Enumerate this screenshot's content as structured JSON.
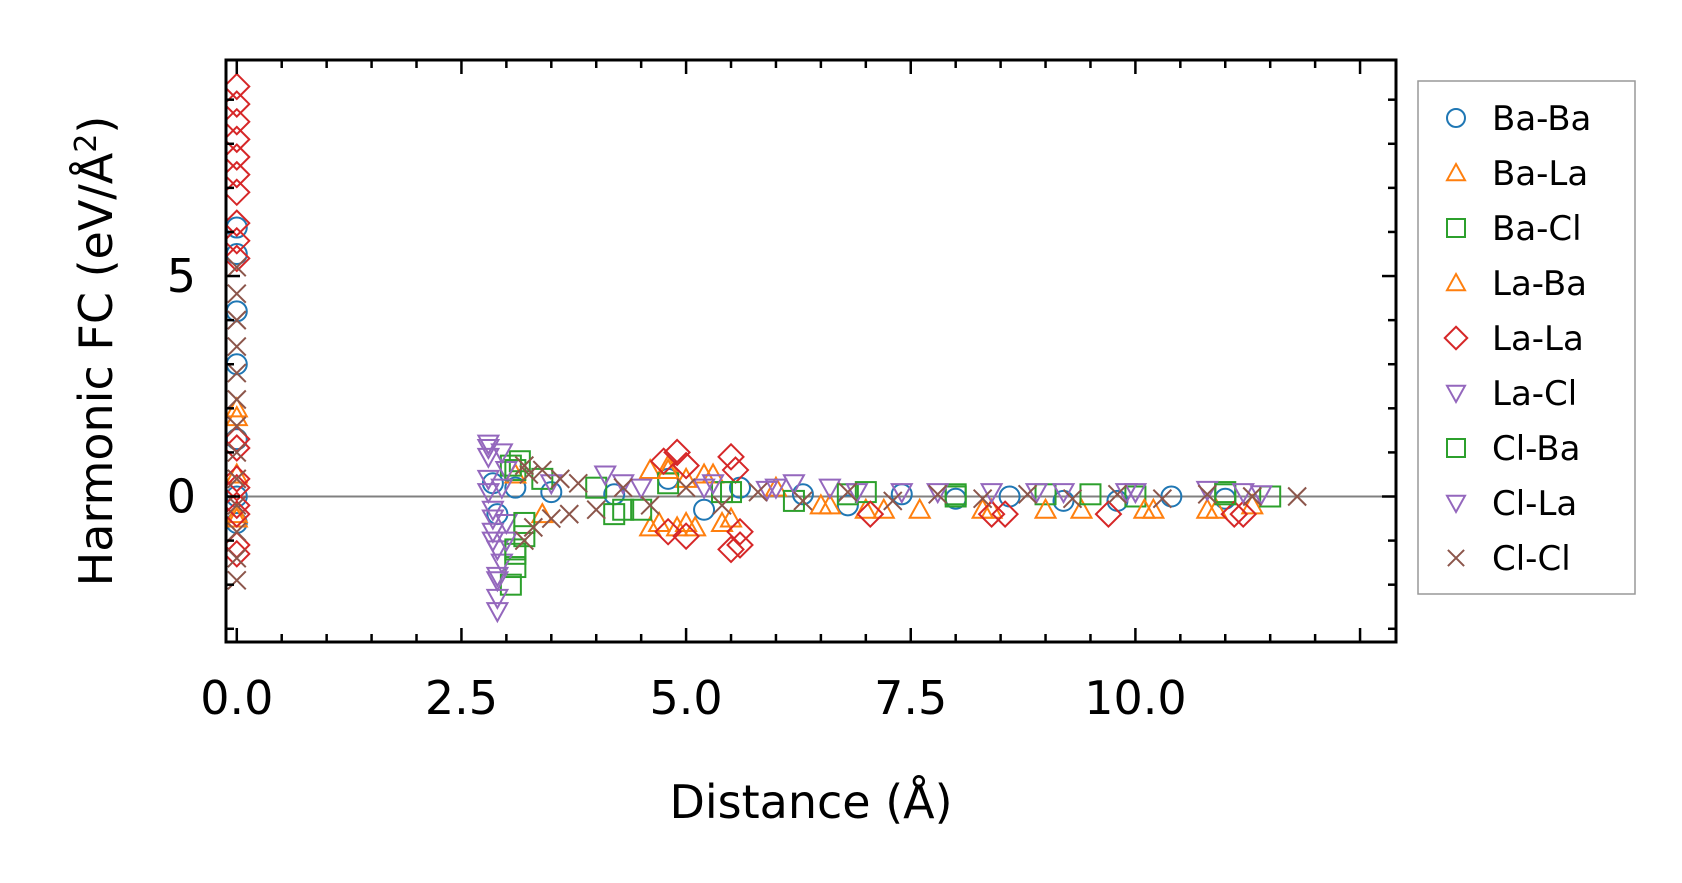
{
  "chart_data": {
    "type": "scatter",
    "title": "",
    "xlabel": "Distance (Å)",
    "ylabel_main": "Harmonic FC (eV/Å",
    "ylabel_sup": "2",
    "ylabel_end": ")",
    "xlim": [
      -0.12,
      12.9
    ],
    "ylim": [
      -3.3,
      9.9
    ],
    "xticks": [
      0.0,
      2.5,
      5.0,
      7.5,
      10.0
    ],
    "xtick_labels": [
      "0.0",
      "2.5",
      "5.0",
      "7.5",
      "10.0"
    ],
    "yticks": [
      0,
      5
    ],
    "ytick_labels": [
      "0",
      "5"
    ],
    "reference_line_y": 0,
    "legend_position": "right, outside plot",
    "series": [
      {
        "name": "Ba-Ba",
        "marker": "circle",
        "color": "#1f77b4",
        "points": [
          [
            0,
            6.1
          ],
          [
            0,
            5.5
          ],
          [
            0,
            4.2
          ],
          [
            0,
            3.0
          ],
          [
            0,
            1.3
          ],
          [
            0,
            0
          ],
          [
            0,
            -0.6
          ],
          [
            2.85,
            0.3
          ],
          [
            2.9,
            -0.4
          ],
          [
            3.1,
            0.2
          ],
          [
            3.5,
            0.1
          ],
          [
            4.2,
            0.05
          ],
          [
            4.8,
            0.4
          ],
          [
            5.2,
            -0.3
          ],
          [
            5.6,
            0.2
          ],
          [
            6.3,
            0.05
          ],
          [
            6.8,
            -0.2
          ],
          [
            7.4,
            0.05
          ],
          [
            8.0,
            -0.05
          ],
          [
            8.6,
            0.0
          ],
          [
            9.2,
            -0.1
          ],
          [
            9.8,
            -0.1
          ],
          [
            10.4,
            0.0
          ],
          [
            11.0,
            -0.05
          ]
        ]
      },
      {
        "name": "Ba-La",
        "marker": "triangle-up",
        "color": "#ff7f0e",
        "points": [
          [
            0,
            2.0
          ],
          [
            0,
            0.5
          ],
          [
            0,
            -0.5
          ],
          [
            3.1,
            0.5
          ],
          [
            3.4,
            -0.4
          ],
          [
            4.6,
            0.6
          ],
          [
            4.7,
            -0.6
          ],
          [
            4.8,
            0.7
          ],
          [
            4.9,
            -0.7
          ],
          [
            5.0,
            0.4
          ],
          [
            5.1,
            -0.7
          ],
          [
            5.3,
            0.5
          ],
          [
            5.5,
            -0.5
          ],
          [
            6.0,
            0.2
          ],
          [
            6.6,
            -0.2
          ],
          [
            7.0,
            -0.3
          ],
          [
            7.6,
            -0.3
          ],
          [
            8.4,
            -0.3
          ],
          [
            9.4,
            -0.3
          ],
          [
            10.2,
            -0.3
          ],
          [
            10.9,
            -0.3
          ],
          [
            11.3,
            -0.2
          ]
        ]
      },
      {
        "name": "Ba-Cl",
        "marker": "square",
        "color": "#2ca02c",
        "points": [
          [
            3.05,
            0.7
          ],
          [
            3.05,
            -2.0
          ],
          [
            3.1,
            -1.6
          ],
          [
            3.1,
            -1.3
          ],
          [
            3.15,
            0.8
          ],
          [
            3.2,
            -0.9
          ],
          [
            3.4,
            0.4
          ],
          [
            4.0,
            0.2
          ],
          [
            4.3,
            -0.3
          ],
          [
            4.8,
            0.3
          ],
          [
            5.4,
            0.1
          ],
          [
            6.2,
            -0.1
          ],
          [
            7.0,
            0.1
          ],
          [
            8.0,
            0.0
          ],
          [
            9.0,
            0.05
          ],
          [
            10.0,
            0.0
          ],
          [
            11.0,
            0.1
          ],
          [
            11.5,
            0.0
          ]
        ]
      },
      {
        "name": "La-Ba",
        "marker": "triangle-up",
        "color": "#ff7f0e",
        "points": [
          [
            0,
            1.8
          ],
          [
            0,
            -0.4
          ],
          [
            4.6,
            -0.7
          ],
          [
            4.8,
            0.6
          ],
          [
            5.0,
            -0.6
          ],
          [
            5.2,
            0.5
          ],
          [
            5.4,
            -0.6
          ],
          [
            6.5,
            -0.2
          ],
          [
            7.2,
            -0.3
          ],
          [
            8.3,
            -0.3
          ],
          [
            9.0,
            -0.3
          ],
          [
            10.1,
            -0.3
          ],
          [
            10.8,
            -0.3
          ]
        ]
      },
      {
        "name": "La-La",
        "marker": "diamond",
        "color": "#d62728",
        "points": [
          [
            0,
            9.3
          ],
          [
            0,
            8.9
          ],
          [
            0,
            8.5
          ],
          [
            0,
            8.1
          ],
          [
            0,
            7.7
          ],
          [
            0,
            7.3
          ],
          [
            0,
            6.9
          ],
          [
            0,
            6.2
          ],
          [
            0,
            5.8
          ],
          [
            0,
            5.4
          ],
          [
            0,
            1.3
          ],
          [
            0,
            1.1
          ],
          [
            0,
            0.4
          ],
          [
            0,
            0.2
          ],
          [
            0,
            -0.2
          ],
          [
            0,
            -0.4
          ],
          [
            0,
            -1.1
          ],
          [
            0,
            -1.3
          ],
          [
            4.75,
            0.8
          ],
          [
            4.8,
            -0.8
          ],
          [
            4.9,
            1.0
          ],
          [
            5.0,
            -0.9
          ],
          [
            5.0,
            0.7
          ],
          [
            5.5,
            0.9
          ],
          [
            5.5,
            -1.2
          ],
          [
            5.55,
            0.6
          ],
          [
            5.6,
            -1.1
          ],
          [
            5.6,
            -0.8
          ],
          [
            7.05,
            -0.4
          ],
          [
            8.4,
            -0.4
          ],
          [
            8.55,
            -0.4
          ],
          [
            9.7,
            -0.4
          ],
          [
            11.1,
            -0.4
          ],
          [
            11.2,
            -0.4
          ]
        ]
      },
      {
        "name": "La-Cl",
        "marker": "triangle-down",
        "color": "#9467bd",
        "points": [
          [
            2.8,
            1.2
          ],
          [
            2.8,
            0.9
          ],
          [
            2.8,
            0.4
          ],
          [
            2.85,
            -0.3
          ],
          [
            2.85,
            -0.8
          ],
          [
            2.9,
            -1.2
          ],
          [
            2.9,
            -1.8
          ],
          [
            2.9,
            -2.3
          ],
          [
            2.95,
            1.0
          ],
          [
            2.95,
            -1.5
          ],
          [
            3.0,
            -0.6
          ],
          [
            3.0,
            0.6
          ],
          [
            4.1,
            0.5
          ],
          [
            4.3,
            0.3
          ],
          [
            5.2,
            0.2
          ],
          [
            5.9,
            0.15
          ],
          [
            6.2,
            0.3
          ],
          [
            6.6,
            0.2
          ],
          [
            7.4,
            0.1
          ],
          [
            8.4,
            0.1
          ],
          [
            9.2,
            0.1
          ],
          [
            10.0,
            0.1
          ],
          [
            10.8,
            0.15
          ],
          [
            11.4,
            0.05
          ]
        ]
      },
      {
        "name": "Cl-Ba",
        "marker": "square",
        "color": "#2ca02c",
        "points": [
          [
            3.1,
            -1.2
          ],
          [
            3.1,
            0.6
          ],
          [
            3.2,
            -0.6
          ],
          [
            4.2,
            -0.4
          ],
          [
            4.5,
            -0.3
          ],
          [
            5.5,
            0.1
          ],
          [
            6.8,
            0.05
          ],
          [
            8.0,
            0.05
          ],
          [
            9.5,
            0.05
          ],
          [
            11.0,
            0.05
          ]
        ]
      },
      {
        "name": "Cl-La",
        "marker": "triangle-down",
        "color": "#9467bd",
        "points": [
          [
            2.8,
            1.1
          ],
          [
            2.8,
            0.1
          ],
          [
            2.85,
            -0.5
          ],
          [
            2.85,
            -1.0
          ],
          [
            2.9,
            -1.9
          ],
          [
            2.9,
            -2.6
          ],
          [
            2.95,
            0.2
          ],
          [
            3.0,
            -1.0
          ],
          [
            3.5,
            0.3
          ],
          [
            4.5,
            0.2
          ],
          [
            5.3,
            0.3
          ],
          [
            6.0,
            0.2
          ],
          [
            6.9,
            0.1
          ],
          [
            7.8,
            0.1
          ],
          [
            8.9,
            0.1
          ],
          [
            9.9,
            0.1
          ],
          [
            11.2,
            0.1
          ]
        ]
      },
      {
        "name": "Cl-Cl",
        "marker": "x",
        "color": "#8c564b",
        "points": [
          [
            0,
            5.2
          ],
          [
            0,
            4.6
          ],
          [
            0,
            4.0
          ],
          [
            0,
            3.4
          ],
          [
            0,
            2.8
          ],
          [
            0,
            2.2
          ],
          [
            0,
            1.6
          ],
          [
            0,
            1.0
          ],
          [
            0,
            0.4
          ],
          [
            0,
            -0.2
          ],
          [
            0,
            -0.8
          ],
          [
            0,
            -1.4
          ],
          [
            0,
            -1.9
          ],
          [
            3.2,
            0.7
          ],
          [
            3.2,
            -1.0
          ],
          [
            3.25,
            0.5
          ],
          [
            3.3,
            -0.7
          ],
          [
            3.4,
            0.6
          ],
          [
            3.5,
            -0.5
          ],
          [
            3.6,
            0.4
          ],
          [
            3.7,
            -0.4
          ],
          [
            3.8,
            0.3
          ],
          [
            4.0,
            -0.3
          ],
          [
            4.3,
            0.2
          ],
          [
            4.6,
            -0.2
          ],
          [
            5.0,
            0.2
          ],
          [
            5.4,
            -0.2
          ],
          [
            5.8,
            0.1
          ],
          [
            6.3,
            -0.1
          ],
          [
            6.8,
            0.1
          ],
          [
            7.3,
            -0.1
          ],
          [
            7.8,
            0.05
          ],
          [
            8.3,
            -0.05
          ],
          [
            8.8,
            0.05
          ],
          [
            9.3,
            -0.05
          ],
          [
            9.8,
            0.05
          ],
          [
            10.3,
            -0.05
          ],
          [
            10.8,
            0.05
          ],
          [
            11.3,
            0.0
          ],
          [
            11.8,
            0.0
          ]
        ]
      }
    ]
  }
}
